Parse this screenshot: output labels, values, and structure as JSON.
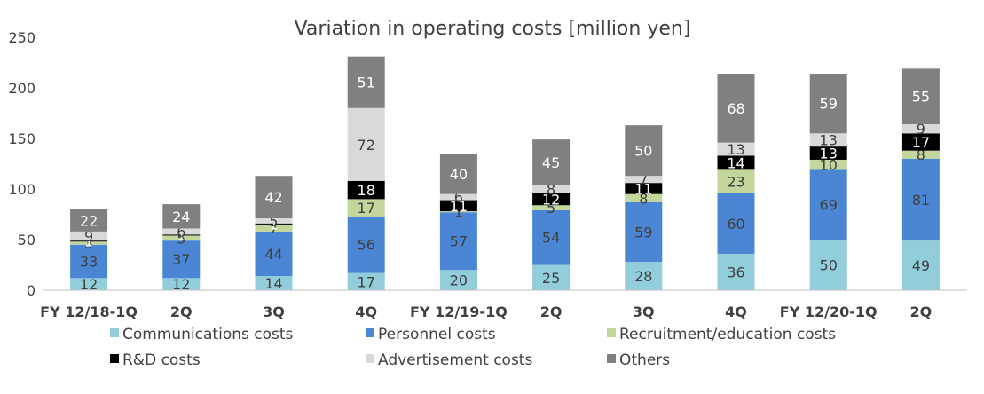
{
  "chart_data": {
    "type": "bar",
    "stacked": true,
    "title": "Variation in operating costs [million yen]",
    "categories": [
      "FY 12/18-1Q",
      "2Q",
      "3Q",
      "4Q",
      "FY 12/19-1Q",
      "2Q",
      "3Q",
      "4Q",
      "FY 12/20-1Q",
      "2Q"
    ],
    "ylim": [
      0,
      250
    ],
    "yticks": [
      0,
      50,
      100,
      150,
      200,
      250
    ],
    "grid": false,
    "legend_position": "bottom",
    "series": [
      {
        "name": "Communications costs",
        "color": "#92CDDC",
        "label_color": "#404040",
        "values": [
          12,
          12,
          14,
          17,
          20,
          25,
          28,
          36,
          50,
          49
        ]
      },
      {
        "name": "Personnel costs",
        "color": "#4A86D4",
        "label_color": "#404040",
        "values": [
          33,
          37,
          44,
          56,
          57,
          54,
          59,
          60,
          69,
          81
        ]
      },
      {
        "name": "Recruitment/education costs",
        "color": "#C3D69B",
        "label_color": "#404040",
        "values": [
          3,
          5,
          7,
          17,
          1,
          5,
          8,
          23,
          10,
          8
        ]
      },
      {
        "name": "R&D costs",
        "color": "#000000",
        "label_color": "#ffffff",
        "values": [
          1,
          1,
          1,
          18,
          11,
          12,
          11,
          14,
          13,
          17
        ]
      },
      {
        "name": "Advertisement costs",
        "color": "#D9D9D9",
        "label_color": "#404040",
        "values": [
          9,
          6,
          5,
          72,
          6,
          8,
          7,
          13,
          13,
          9
        ]
      },
      {
        "name": "Others",
        "color": "#808080",
        "label_color": "#ffffff",
        "values": [
          22,
          24,
          42,
          51,
          40,
          45,
          50,
          68,
          59,
          55
        ]
      }
    ]
  }
}
